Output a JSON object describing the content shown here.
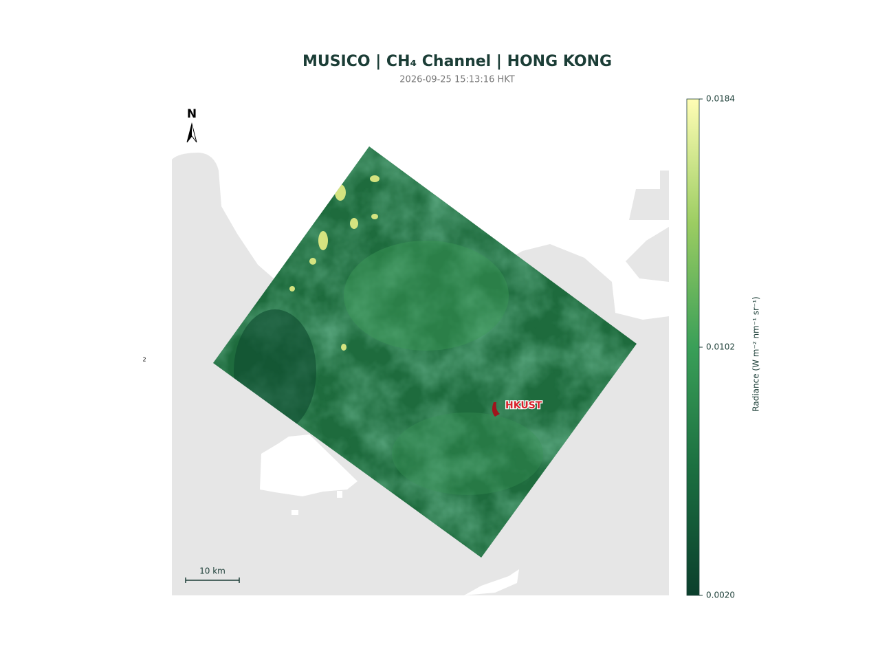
{
  "header": {
    "title": "MUSICO | CH₄ Channel | HONG KONG",
    "subtitle": "2026-09-25 15:13:16 HKT"
  },
  "map": {
    "north_label": "N",
    "marker_label": "HKUST",
    "scale_bar_label": "10 km",
    "edge_label": "2"
  },
  "colorbar": {
    "label": "Radiance (W m⁻² nm⁻¹ sr⁻¹)",
    "range": [
      0.002,
      0.0184
    ],
    "ticks": [
      {
        "value": 0.002,
        "label": "0.0020"
      },
      0.0102,
      0.0184
    ]
  }
}
